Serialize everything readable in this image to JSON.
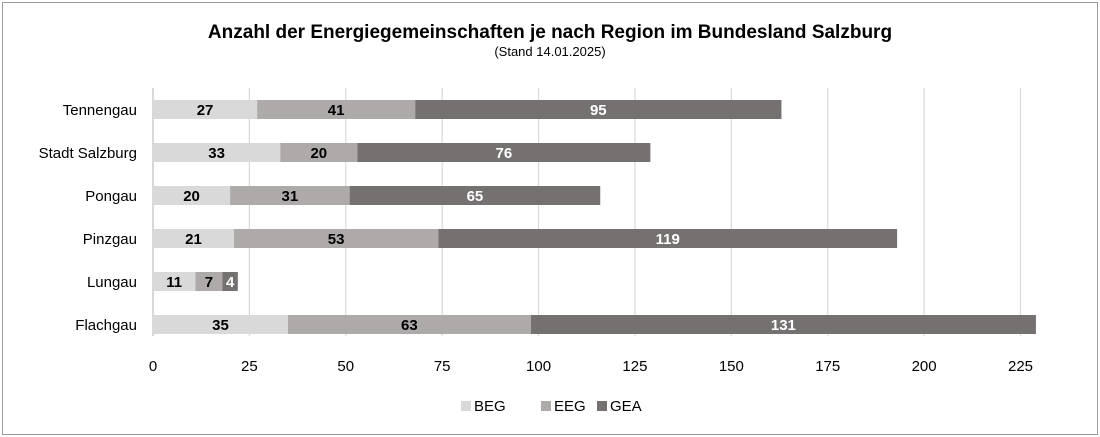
{
  "chart_data": {
    "type": "bar",
    "orientation": "horizontal",
    "stacked": true,
    "title": "Anzahl der Energiegemeinschaften je nach Region im Bundesland Salzburg",
    "subtitle": "(Stand 14.01.2025)",
    "categories": [
      "Tennengau",
      "Stadt Salzburg",
      "Pongau",
      "Pinzgau",
      "Lungau",
      "Flachgau"
    ],
    "series": [
      {
        "name": "BEG",
        "values": [
          27,
          33,
          20,
          21,
          11,
          35
        ],
        "color": "#d9d9d9",
        "label_color": "#000000"
      },
      {
        "name": "EEG",
        "values": [
          41,
          20,
          31,
          53,
          7,
          63
        ],
        "color": "#aeaaaa",
        "label_color": "#000000"
      },
      {
        "name": "GEA",
        "values": [
          95,
          76,
          65,
          119,
          4,
          131
        ],
        "color": "#767171",
        "label_color": "#ffffff"
      }
    ],
    "xlim": [
      0,
      230
    ],
    "xticks": [
      0,
      25,
      50,
      75,
      100,
      125,
      150,
      175,
      200,
      225
    ],
    "grid": true,
    "legend_position": "bottom",
    "colors": {
      "grid": "#d9d9d9",
      "axis": "#bfbfbf"
    }
  }
}
